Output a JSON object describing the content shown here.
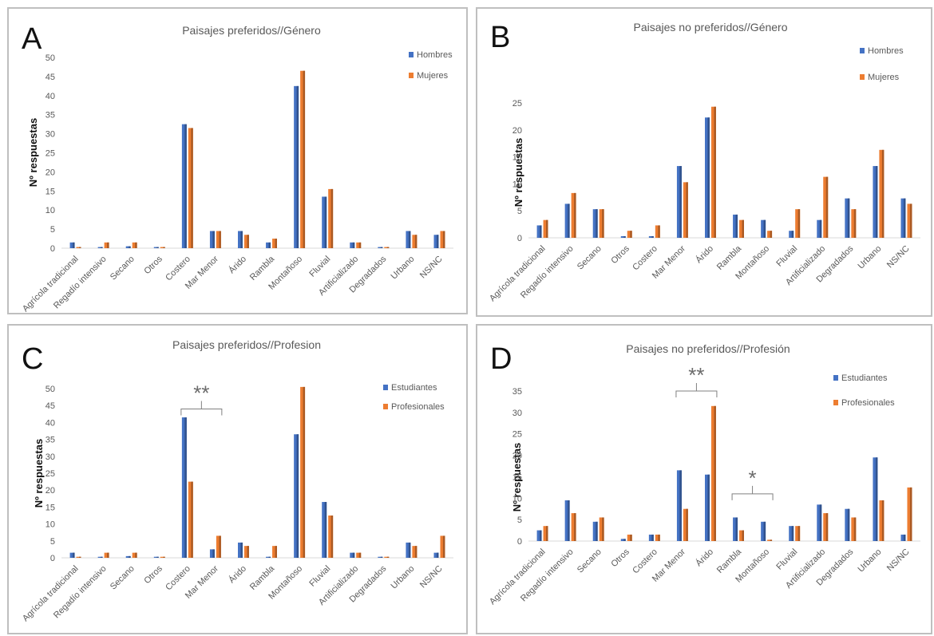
{
  "chart_data": [
    {
      "panel": "A",
      "type": "bar",
      "title": "Paisajes preferidos//Género",
      "ylabel": "Nº respuestas",
      "ylim": [
        0,
        50
      ],
      "yticks": [
        0,
        5,
        10,
        15,
        20,
        25,
        30,
        35,
        40,
        45,
        50
      ],
      "legend_position": "top-right",
      "grid": false,
      "categories": [
        "Agrícola tradicional",
        "Regadío intensivo",
        "Secano",
        "Otros",
        "Costero",
        "Mar Menor",
        "Árido",
        "Rambla",
        "Montañoso",
        "Fluvial",
        "Artificializado",
        "Degradados",
        "Urbano",
        "NS/NC"
      ],
      "series": [
        {
          "name": "Hombres",
          "color": "#4472c4",
          "values": [
            1.5,
            0.3,
            0.5,
            0.3,
            32.5,
            4.5,
            4.5,
            1.5,
            42.5,
            13.5,
            1.5,
            0.3,
            4.5,
            3.5
          ]
        },
        {
          "name": "Mujeres",
          "color": "#ed7d31",
          "values": [
            0.3,
            1.5,
            1.5,
            0.3,
            31.5,
            4.5,
            3.5,
            2.5,
            46.5,
            15.5,
            1.5,
            0.3,
            3.5,
            4.5
          ]
        }
      ],
      "annotations": []
    },
    {
      "panel": "B",
      "type": "bar",
      "title": "Paisajes no preferidos//Género",
      "ylabel": "Nº respuestas",
      "ylim": [
        0,
        25
      ],
      "yticks": [
        0,
        5,
        10,
        15,
        20,
        25
      ],
      "legend_position": "top-right",
      "grid": false,
      "categories": [
        "Agrícola tradicional",
        "Regadío intensivo",
        "Secano",
        "Otros",
        "Costero",
        "Mar Menor",
        "Árido",
        "Rambla",
        "Montañoso",
        "Fluvial",
        "Artificializado",
        "Degradados",
        "Urbano",
        "NS/NC"
      ],
      "series": [
        {
          "name": "Hombres",
          "color": "#4472c4",
          "values": [
            2.3,
            6.3,
            5.3,
            0.3,
            0.3,
            13.3,
            22.3,
            4.3,
            3.3,
            1.3,
            3.3,
            7.3,
            13.3,
            7.3
          ]
        },
        {
          "name": "Mujeres",
          "color": "#ed7d31",
          "values": [
            3.3,
            8.3,
            5.3,
            1.3,
            2.3,
            10.3,
            24.3,
            3.3,
            1.3,
            5.3,
            11.3,
            5.3,
            16.3,
            6.3
          ]
        }
      ],
      "annotations": []
    },
    {
      "panel": "C",
      "type": "bar",
      "title": "Paisajes preferidos//Profesion",
      "ylabel": "Nº respuestas",
      "ylim": [
        0,
        50
      ],
      "yticks": [
        0,
        5,
        10,
        15,
        20,
        25,
        30,
        35,
        40,
        45,
        50
      ],
      "legend_position": "top-right",
      "grid": false,
      "categories": [
        "Agrícola tradicional",
        "Regadío intensivo",
        "Secano",
        "Otros",
        "Costero",
        "Mar Menor",
        "Árido",
        "Rambla",
        "Montañoso",
        "Fluvial",
        "Artificializado",
        "Degradados",
        "Urbano",
        "NS/NC"
      ],
      "series": [
        {
          "name": "Estudiantes",
          "color": "#4472c4",
          "values": [
            1.5,
            0.3,
            0.5,
            0.3,
            41.5,
            2.5,
            4.5,
            0.3,
            36.5,
            16.5,
            1.5,
            0.3,
            4.5,
            1.5
          ]
        },
        {
          "name": "Profesionales",
          "color": "#ed7d31",
          "values": [
            0.3,
            1.5,
            1.5,
            0.3,
            22.5,
            6.5,
            3.5,
            3.5,
            50.5,
            12.5,
            1.5,
            0.3,
            3.5,
            6.5
          ]
        }
      ],
      "annotations": [
        {
          "label": "**",
          "from_category": 4,
          "to_category": 5,
          "y": 44
        }
      ]
    },
    {
      "panel": "D",
      "type": "bar",
      "title": "Paisajes no preferidos//Profesión",
      "ylabel": "Nº respuestas",
      "ylim": [
        0,
        35
      ],
      "yticks": [
        0,
        5,
        10,
        15,
        20,
        25,
        30,
        35
      ],
      "legend_position": "top-right",
      "grid": false,
      "categories": [
        "Agrícola tradicional",
        "Regadío intensivo",
        "Secano",
        "Otros",
        "Costero",
        "Mar Menor",
        "Árido",
        "Rambla",
        "Montañoso",
        "Fluvial",
        "Artificializado",
        "Degradados",
        "Urbano",
        "NS/NC"
      ],
      "series": [
        {
          "name": "Estudiantes",
          "color": "#4472c4",
          "values": [
            2.5,
            9.5,
            4.5,
            0.5,
            1.5,
            16.5,
            15.5,
            5.5,
            4.5,
            3.5,
            8.5,
            7.5,
            19.5,
            1.5
          ]
        },
        {
          "name": "Profesionales",
          "color": "#ed7d31",
          "values": [
            3.5,
            6.5,
            5.5,
            1.5,
            1.5,
            7.5,
            31.5,
            2.5,
            0.3,
            3.5,
            6.5,
            5.5,
            9.5,
            12.5
          ]
        }
      ],
      "annotations": [
        {
          "label": "**",
          "from_category": 5,
          "to_category": 6,
          "y": 35
        },
        {
          "label": "*",
          "from_category": 7,
          "to_category": 8,
          "y": 11
        }
      ]
    }
  ]
}
